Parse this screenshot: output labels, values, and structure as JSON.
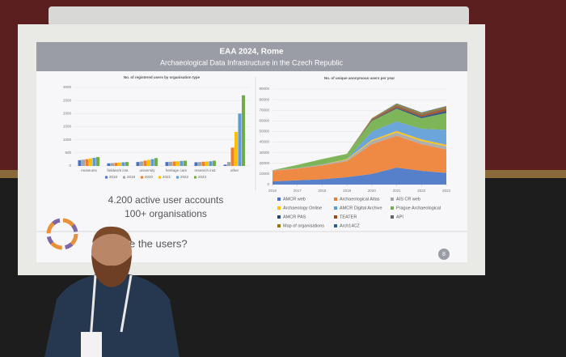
{
  "slide": {
    "title": "EAA 2024, Rome",
    "subtitle": "Archaeological Data Infrastructure in the Czech Republic",
    "lines": [
      "4.200 active user accounts",
      "100+ organisations"
    ],
    "question": "e the users?",
    "page_number": "8"
  },
  "chart_data": [
    {
      "type": "bar",
      "title": "No. of registered users by organisation type",
      "categories": [
        "museums",
        "fieldwork inst.",
        "university",
        "heritage care",
        "research inst.",
        "other"
      ],
      "series": [
        {
          "name": "2018",
          "color": "#4472c4",
          "values": [
            220,
            100,
            150,
            150,
            140,
            50
          ]
        },
        {
          "name": "2019",
          "color": "#a5a5a5",
          "values": [
            240,
            110,
            170,
            160,
            150,
            150
          ]
        },
        {
          "name": "2020",
          "color": "#ed7d31",
          "values": [
            260,
            120,
            200,
            170,
            160,
            700
          ]
        },
        {
          "name": "2021",
          "color": "#ffc000",
          "values": [
            290,
            130,
            230,
            180,
            170,
            1300
          ]
        },
        {
          "name": "2022",
          "color": "#5b9bd5",
          "values": [
            310,
            140,
            260,
            190,
            180,
            2000
          ]
        },
        {
          "name": "2023",
          "color": "#70ad47",
          "values": [
            340,
            150,
            300,
            200,
            200,
            2700
          ]
        }
      ],
      "ylim": [
        0,
        3000
      ],
      "yticks": [
        0,
        500,
        1000,
        1500,
        2000,
        2500,
        3000
      ],
      "grid": true
    },
    {
      "type": "area",
      "title": "No. of unique anonymous users per year",
      "x": [
        2016,
        2017,
        2018,
        2019,
        2020,
        2021,
        2022,
        2023
      ],
      "series": [
        {
          "name": "AMCR web",
          "color": "#4472c4",
          "values": [
            3000,
            4000,
            5000,
            7000,
            10000,
            16000,
            13000,
            11000
          ]
        },
        {
          "name": "Archaeological Atlas",
          "color": "#ed7d31",
          "values": [
            10000,
            11000,
            13000,
            15000,
            28000,
            30000,
            25000,
            22000
          ]
        },
        {
          "name": "AIS CR web",
          "color": "#a5a5a5",
          "values": [
            500,
            500,
            1000,
            1500,
            3000,
            3000,
            3000,
            3000
          ]
        },
        {
          "name": "Archaeology Online",
          "color": "#ffc000",
          "values": [
            0,
            0,
            0,
            500,
            1000,
            1500,
            1500,
            1500
          ]
        },
        {
          "name": "AMCR Digital Archive",
          "color": "#5b9bd5",
          "values": [
            0,
            0,
            0,
            0,
            8000,
            9000,
            10000,
            14000
          ]
        },
        {
          "name": "Prague Archaeological",
          "color": "#70ad47",
          "values": [
            0,
            3000,
            5000,
            5000,
            10000,
            12000,
            10000,
            16000
          ]
        },
        {
          "name": "AMCR PAS",
          "color": "#264478",
          "values": [
            0,
            0,
            0,
            0,
            500,
            1000,
            1500,
            2000
          ]
        },
        {
          "name": "TEATER",
          "color": "#9e480e",
          "values": [
            0,
            0,
            0,
            0,
            1000,
            1500,
            1500,
            2000
          ]
        },
        {
          "name": "API",
          "color": "#636363",
          "values": [
            0,
            0,
            0,
            0,
            500,
            1000,
            1000,
            1000
          ]
        },
        {
          "name": "Map of organisations",
          "color": "#997300",
          "values": [
            0,
            0,
            0,
            0,
            500,
            1000,
            1000,
            1000
          ]
        },
        {
          "name": "Arch14CZ",
          "color": "#255e91",
          "values": [
            0,
            0,
            0,
            0,
            0,
            500,
            500,
            500
          ]
        }
      ],
      "xlim": [
        2016,
        2023
      ],
      "xticks": [
        2016,
        2017,
        2018,
        2019,
        2020,
        2021,
        2022,
        2023
      ],
      "ylim": [
        0,
        90000
      ],
      "yticks": [
        0,
        10000,
        20000,
        30000,
        40000,
        50000,
        60000,
        70000,
        80000,
        90000
      ],
      "grid": true
    }
  ]
}
